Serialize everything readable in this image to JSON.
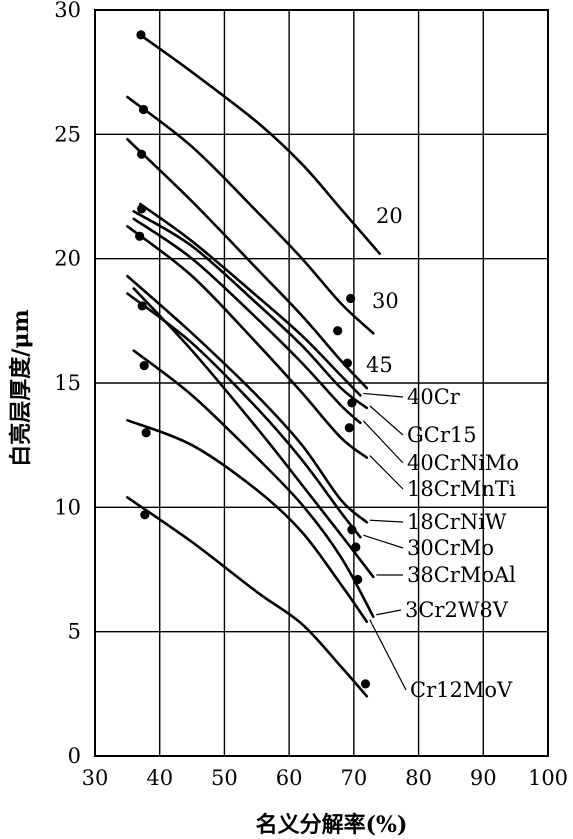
{
  "chart_data": {
    "type": "line",
    "title": "",
    "xlabel": "名义分解率(%)",
    "ylabel": "白亮层厚度/μm",
    "xlim": [
      30,
      100
    ],
    "ylim": [
      0,
      30
    ],
    "x_ticks": [
      "30",
      "40",
      "50",
      "60",
      "70",
      "80",
      "90",
      "100"
    ],
    "y_ticks": [
      "0",
      "5",
      "10",
      "15",
      "20",
      "25",
      "30"
    ],
    "grid": true,
    "series": [
      {
        "name": "20",
        "x": [
          37,
          45,
          55,
          62,
          68,
          74
        ],
        "y": [
          29.0,
          27.5,
          25.5,
          23.8,
          22.0,
          20.2
        ]
      },
      {
        "name": "30",
        "x": [
          35,
          45,
          55,
          62,
          68,
          73
        ],
        "y": [
          26.5,
          24.5,
          21.9,
          20.0,
          18.2,
          17.0
        ]
      },
      {
        "name": "45",
        "x": [
          35,
          45,
          55,
          62,
          68,
          72
        ],
        "y": [
          24.8,
          22.3,
          19.6,
          17.7,
          15.9,
          14.8
        ]
      },
      {
        "name": "40Cr",
        "x": [
          37,
          45,
          55,
          62,
          68,
          71
        ],
        "y": [
          22.2,
          20.7,
          18.5,
          16.9,
          15.3,
          14.5
        ]
      },
      {
        "name": "GCr15",
        "x": [
          36,
          45,
          55,
          62,
          68,
          72
        ],
        "y": [
          21.9,
          20.5,
          18.2,
          16.5,
          14.8,
          14.0
        ]
      },
      {
        "name": "40CrNiMo",
        "x": [
          36,
          45,
          55,
          62,
          68,
          71
        ],
        "y": [
          21.6,
          20.0,
          17.6,
          15.8,
          14.1,
          13.4
        ]
      },
      {
        "name": "18CrMnTi",
        "x": [
          35,
          45,
          55,
          62,
          68,
          72
        ],
        "y": [
          21.3,
          19.3,
          16.6,
          14.6,
          12.8,
          12.0
        ]
      },
      {
        "name": "18CrNiW",
        "x": [
          35,
          45,
          55,
          62,
          68,
          72
        ],
        "y": [
          19.3,
          17.0,
          14.5,
          12.5,
          10.3,
          9.4
        ]
      },
      {
        "name": "30CrMo",
        "x": [
          35,
          45,
          55,
          62,
          68,
          71
        ],
        "y": [
          18.6,
          16.6,
          14.0,
          11.9,
          9.8,
          8.8
        ]
      },
      {
        "name": "38CrMoAl",
        "x": [
          36,
          45,
          55,
          62,
          68,
          73
        ],
        "y": [
          18.8,
          16.3,
          13.2,
          10.9,
          8.9,
          7.2
        ]
      },
      {
        "name": "3Cr2W8V",
        "x": [
          36,
          45,
          55,
          62,
          68,
          73
        ],
        "y": [
          16.3,
          14.5,
          12.0,
          10.1,
          8.0,
          5.6
        ]
      },
      {
        "name": "Cr12MoV",
        "x": [
          35,
          45,
          55,
          62,
          68,
          72
        ],
        "y": [
          13.5,
          12.5,
          10.7,
          9.0,
          6.9,
          5.4
        ]
      },
      {
        "name": "",
        "x": [
          35,
          45,
          55,
          62,
          68,
          72
        ],
        "y": [
          10.4,
          8.6,
          6.6,
          5.3,
          3.6,
          2.4
        ]
      }
    ],
    "points": [
      {
        "x": 37.1,
        "y": 29.0
      },
      {
        "x": 37.5,
        "y": 26.0
      },
      {
        "x": 37.2,
        "y": 24.2
      },
      {
        "x": 37.2,
        "y": 22.0
      },
      {
        "x": 36.9,
        "y": 20.9
      },
      {
        "x": 37.3,
        "y": 18.1
      },
      {
        "x": 37.6,
        "y": 15.7
      },
      {
        "x": 37.9,
        "y": 13.0
      },
      {
        "x": 37.7,
        "y": 9.7
      },
      {
        "x": 69.5,
        "y": 18.4
      },
      {
        "x": 67.5,
        "y": 17.1
      },
      {
        "x": 69.0,
        "y": 15.8
      },
      {
        "x": 69.7,
        "y": 14.2
      },
      {
        "x": 69.3,
        "y": 13.2
      },
      {
        "x": 69.7,
        "y": 9.1
      },
      {
        "x": 70.3,
        "y": 8.4
      },
      {
        "x": 70.6,
        "y": 7.1
      },
      {
        "x": 71.8,
        "y": 2.9
      }
    ]
  }
}
